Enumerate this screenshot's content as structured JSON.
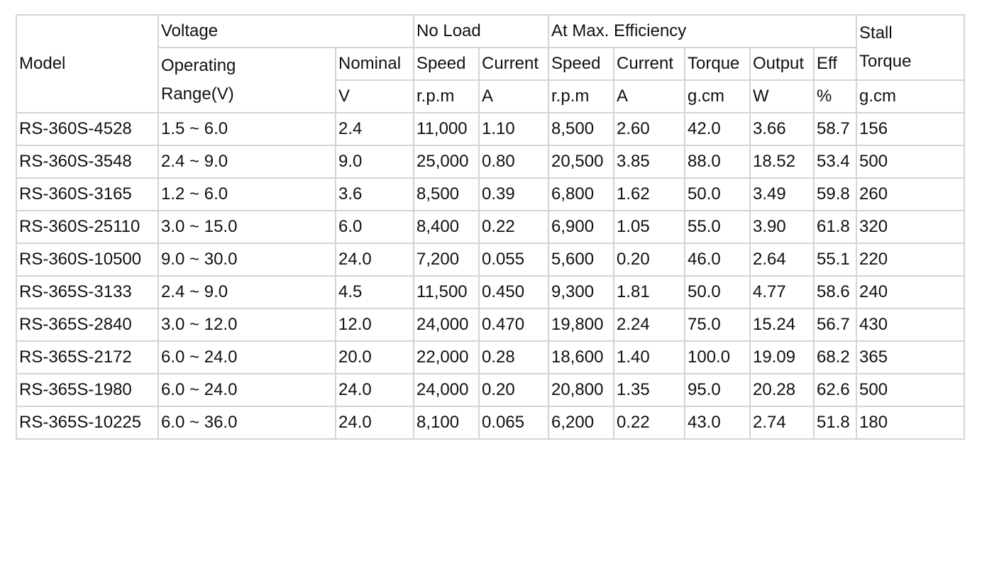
{
  "header": [
    [
      "Model",
      "Voltage",
      "No Load",
      "At Max. Efficiency",
      "Stall Torque"
    ],
    [
      "Operating Range(V)",
      "Nominal",
      "Speed",
      "Current",
      "Speed",
      "Current",
      "Torque",
      "Output",
      "Eff"
    ],
    [
      "V",
      "r.p.m",
      "A",
      "r.p.m",
      "A",
      "g.cm",
      "W",
      "%",
      "g.cm"
    ]
  ],
  "rows": [
    [
      "RS-360S-4528",
      "1.5 ~ 6.0",
      "2.4",
      "11,000",
      "1.10",
      "8,500",
      "2.60",
      "42.0",
      "3.66",
      "58.7",
      "156"
    ],
    [
      "RS-360S-3548",
      "2.4 ~ 9.0",
      "9.0",
      "25,000",
      "0.80",
      "20,500",
      "3.85",
      "88.0",
      "18.52",
      "53.4",
      "500"
    ],
    [
      "RS-360S-3165",
      "1.2 ~ 6.0",
      "3.6",
      "8,500",
      "0.39",
      "6,800",
      "1.62",
      "50.0",
      "3.49",
      "59.8",
      "260"
    ],
    [
      "RS-360S-25110",
      "3.0 ~ 15.0",
      "6.0",
      "8,400",
      "0.22",
      "6,900",
      "1.05",
      "55.0",
      "3.90",
      "61.8",
      "320"
    ],
    [
      "RS-360S-10500",
      "9.0 ~ 30.0",
      "24.0",
      "7,200",
      "0.055",
      "5,600",
      "0.20",
      "46.0",
      "2.64",
      "55.1",
      "220"
    ],
    [
      "RS-365S-3133",
      "2.4 ~ 9.0",
      "4.5",
      "11,500",
      "0.450",
      "9,300",
      "1.81",
      "50.0",
      "4.77",
      "58.6",
      "240"
    ],
    [
      "RS-365S-2840",
      "3.0 ~ 12.0",
      "12.0",
      "24,000",
      "0.470",
      "19,800",
      "2.24",
      "75.0",
      "15.24",
      "56.7",
      "430"
    ],
    [
      "RS-365S-2172",
      "6.0 ~ 24.0",
      "20.0",
      "22,000",
      "0.28",
      "18,600",
      "1.40",
      "100.0",
      "19.09",
      "68.2",
      "365"
    ],
    [
      "RS-365S-1980",
      "6.0 ~ 24.0",
      "24.0",
      "24,000",
      "0.20",
      "20,800",
      "1.35",
      "95.0",
      "20.28",
      "62.6",
      "500"
    ],
    [
      "RS-365S-10225",
      "6.0 ~ 36.0",
      "24.0",
      "8,100",
      "0.065",
      "6,200",
      "0.22",
      "43.0",
      "2.74",
      "51.8",
      "180"
    ]
  ]
}
